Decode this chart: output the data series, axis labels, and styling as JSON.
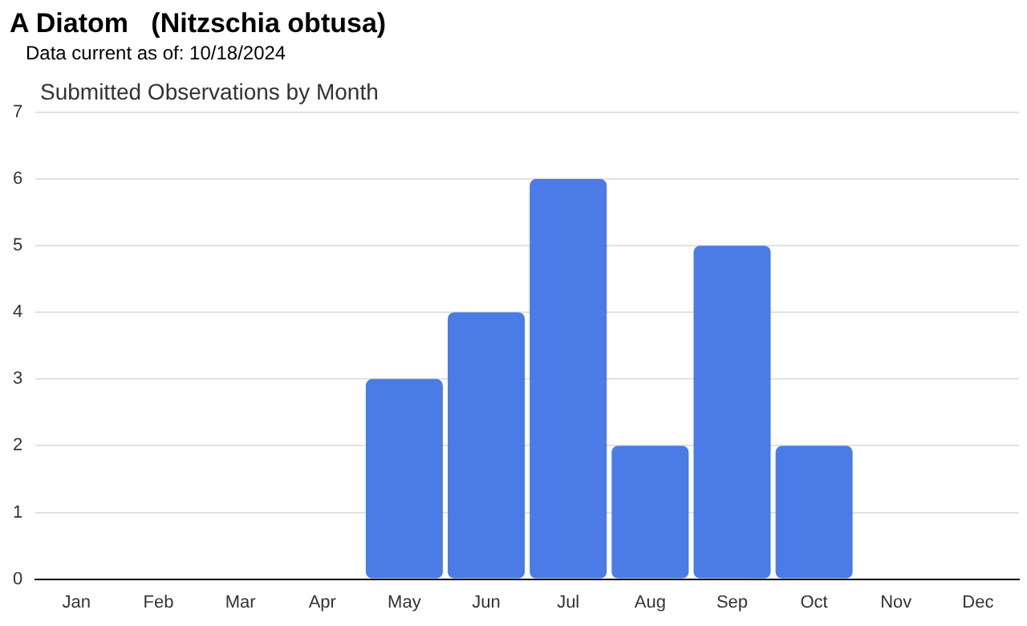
{
  "chart_data": {
    "type": "bar",
    "title": "A Diatom   (Nitzschia obtusa)",
    "subtitle": "Data current as of: 10/18/2024",
    "annotations": [
      "Submitted Observations by Month"
    ],
    "categories": [
      "Jan",
      "Feb",
      "Mar",
      "Apr",
      "May",
      "Jun",
      "Jul",
      "Aug",
      "Sep",
      "Oct",
      "Nov",
      "Dec"
    ],
    "values": [
      0,
      0,
      0,
      0,
      3,
      4,
      6,
      2,
      5,
      2,
      0,
      0
    ],
    "color": "#4a7be6",
    "ylim": [
      0,
      7
    ],
    "yticks": [
      0,
      1,
      2,
      3,
      4,
      5,
      6,
      7
    ],
    "grid": "y",
    "legend": false
  }
}
